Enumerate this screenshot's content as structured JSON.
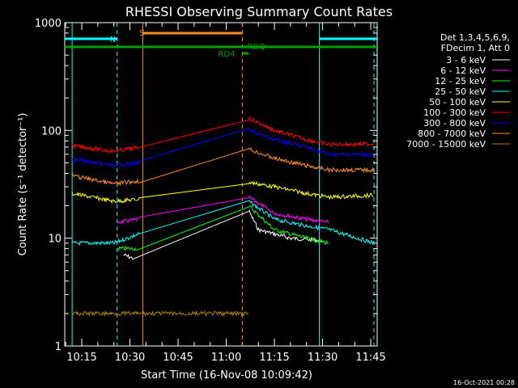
{
  "chart_data": {
    "type": "line",
    "title": "RHESSI Observing Summary Count Rates",
    "xlabel": "Start Time (16-Nov-08 10:09:42)",
    "ylabel": "Count Rate (s⁻¹ detector⁻¹)",
    "y_scale": "log",
    "ylim": [
      1,
      1000
    ],
    "xlim": [
      "10:09:42",
      "11:47:00"
    ],
    "x_ticks": [
      "10:15",
      "10:30",
      "10:45",
      "11:00",
      "11:15",
      "11:30",
      "11:45"
    ],
    "y_ticks": [
      "1",
      "10",
      "100",
      "1000"
    ],
    "legend_header": [
      "Det 1,3,4,5,6,9,",
      "FDecim 1, Att 0"
    ],
    "legend_position": "right",
    "footer_date": "16-Oct-2021 00:28",
    "flag_labels": {
      "N": "N",
      "S": "S",
      "RD4": "RD4",
      "RDQ": "RDQ"
    },
    "flag_colors": {
      "N": "#00ffff",
      "S": "#ff8c1a",
      "green": "#00a000"
    },
    "series": [
      {
        "name": "3 - 6 keV",
        "color": "#ffffff",
        "points": [
          [
            "10:28",
            7
          ],
          [
            "10:31",
            6.5
          ],
          [
            "11:07",
            18
          ],
          [
            "11:10",
            12
          ],
          [
            "11:20",
            10
          ],
          [
            "11:30",
            9.5
          ]
        ]
      },
      {
        "name": "6 - 12 keV",
        "color": "#ff00ff",
        "points": [
          [
            "10:26",
            14
          ],
          [
            "10:33",
            15
          ],
          [
            "11:07",
            24
          ],
          [
            "11:15",
            17
          ],
          [
            "11:25",
            15
          ],
          [
            "11:32",
            14
          ]
        ]
      },
      {
        "name": "12 - 25 keV",
        "color": "#00ff00",
        "points": [
          [
            "10:26",
            8
          ],
          [
            "10:32",
            8
          ],
          [
            "11:07",
            20
          ],
          [
            "11:15",
            12
          ],
          [
            "11:25",
            10
          ],
          [
            "11:32",
            9
          ]
        ]
      },
      {
        "name": "25 - 50 keV",
        "color": "#00ffff",
        "points": [
          [
            "10:12",
            9
          ],
          [
            "10:25",
            9
          ],
          [
            "10:33",
            11
          ],
          [
            "11:07",
            22
          ],
          [
            "11:15",
            15
          ],
          [
            "11:25",
            13
          ],
          [
            "11:32",
            12
          ],
          [
            "11:46",
            9
          ]
        ]
      },
      {
        "name": "50 - 100 keV",
        "color": "#ffff00",
        "points": [
          [
            "10:12",
            26
          ],
          [
            "10:25",
            22
          ],
          [
            "10:33",
            23
          ],
          [
            "11:07",
            33
          ],
          [
            "11:15",
            30
          ],
          [
            "11:25",
            26
          ],
          [
            "11:32",
            24
          ],
          [
            "11:46",
            25
          ]
        ]
      },
      {
        "name": "100 - 300 keV",
        "color": "#ff0000",
        "points": [
          [
            "10:12",
            72
          ],
          [
            "10:25",
            64
          ],
          [
            "10:33",
            70
          ],
          [
            "11:07",
            130
          ],
          [
            "11:15",
            100
          ],
          [
            "11:25",
            82
          ],
          [
            "11:32",
            74
          ],
          [
            "11:46",
            75
          ]
        ]
      },
      {
        "name": "300 - 800 keV",
        "color": "#0000ff",
        "points": [
          [
            "10:12",
            54
          ],
          [
            "10:25",
            47
          ],
          [
            "10:33",
            50
          ],
          [
            "11:07",
            100
          ],
          [
            "11:15",
            82
          ],
          [
            "11:25",
            70
          ],
          [
            "11:32",
            60
          ],
          [
            "11:46",
            60
          ]
        ]
      },
      {
        "name": "800 - 7000 keV",
        "color": "#ff8c1a",
        "points": [
          [
            "10:12",
            38
          ],
          [
            "10:25",
            32
          ],
          [
            "10:33",
            34
          ],
          [
            "11:07",
            67
          ],
          [
            "11:15",
            55
          ],
          [
            "11:25",
            47
          ],
          [
            "11:32",
            43
          ],
          [
            "11:46",
            43
          ]
        ]
      },
      {
        "name": "7000 - 15000 keV",
        "color": "#b08000",
        "points": [
          [
            "10:12",
            2
          ],
          [
            "10:24",
            2
          ],
          [
            "11:07",
            2
          ]
        ]
      }
    ]
  }
}
